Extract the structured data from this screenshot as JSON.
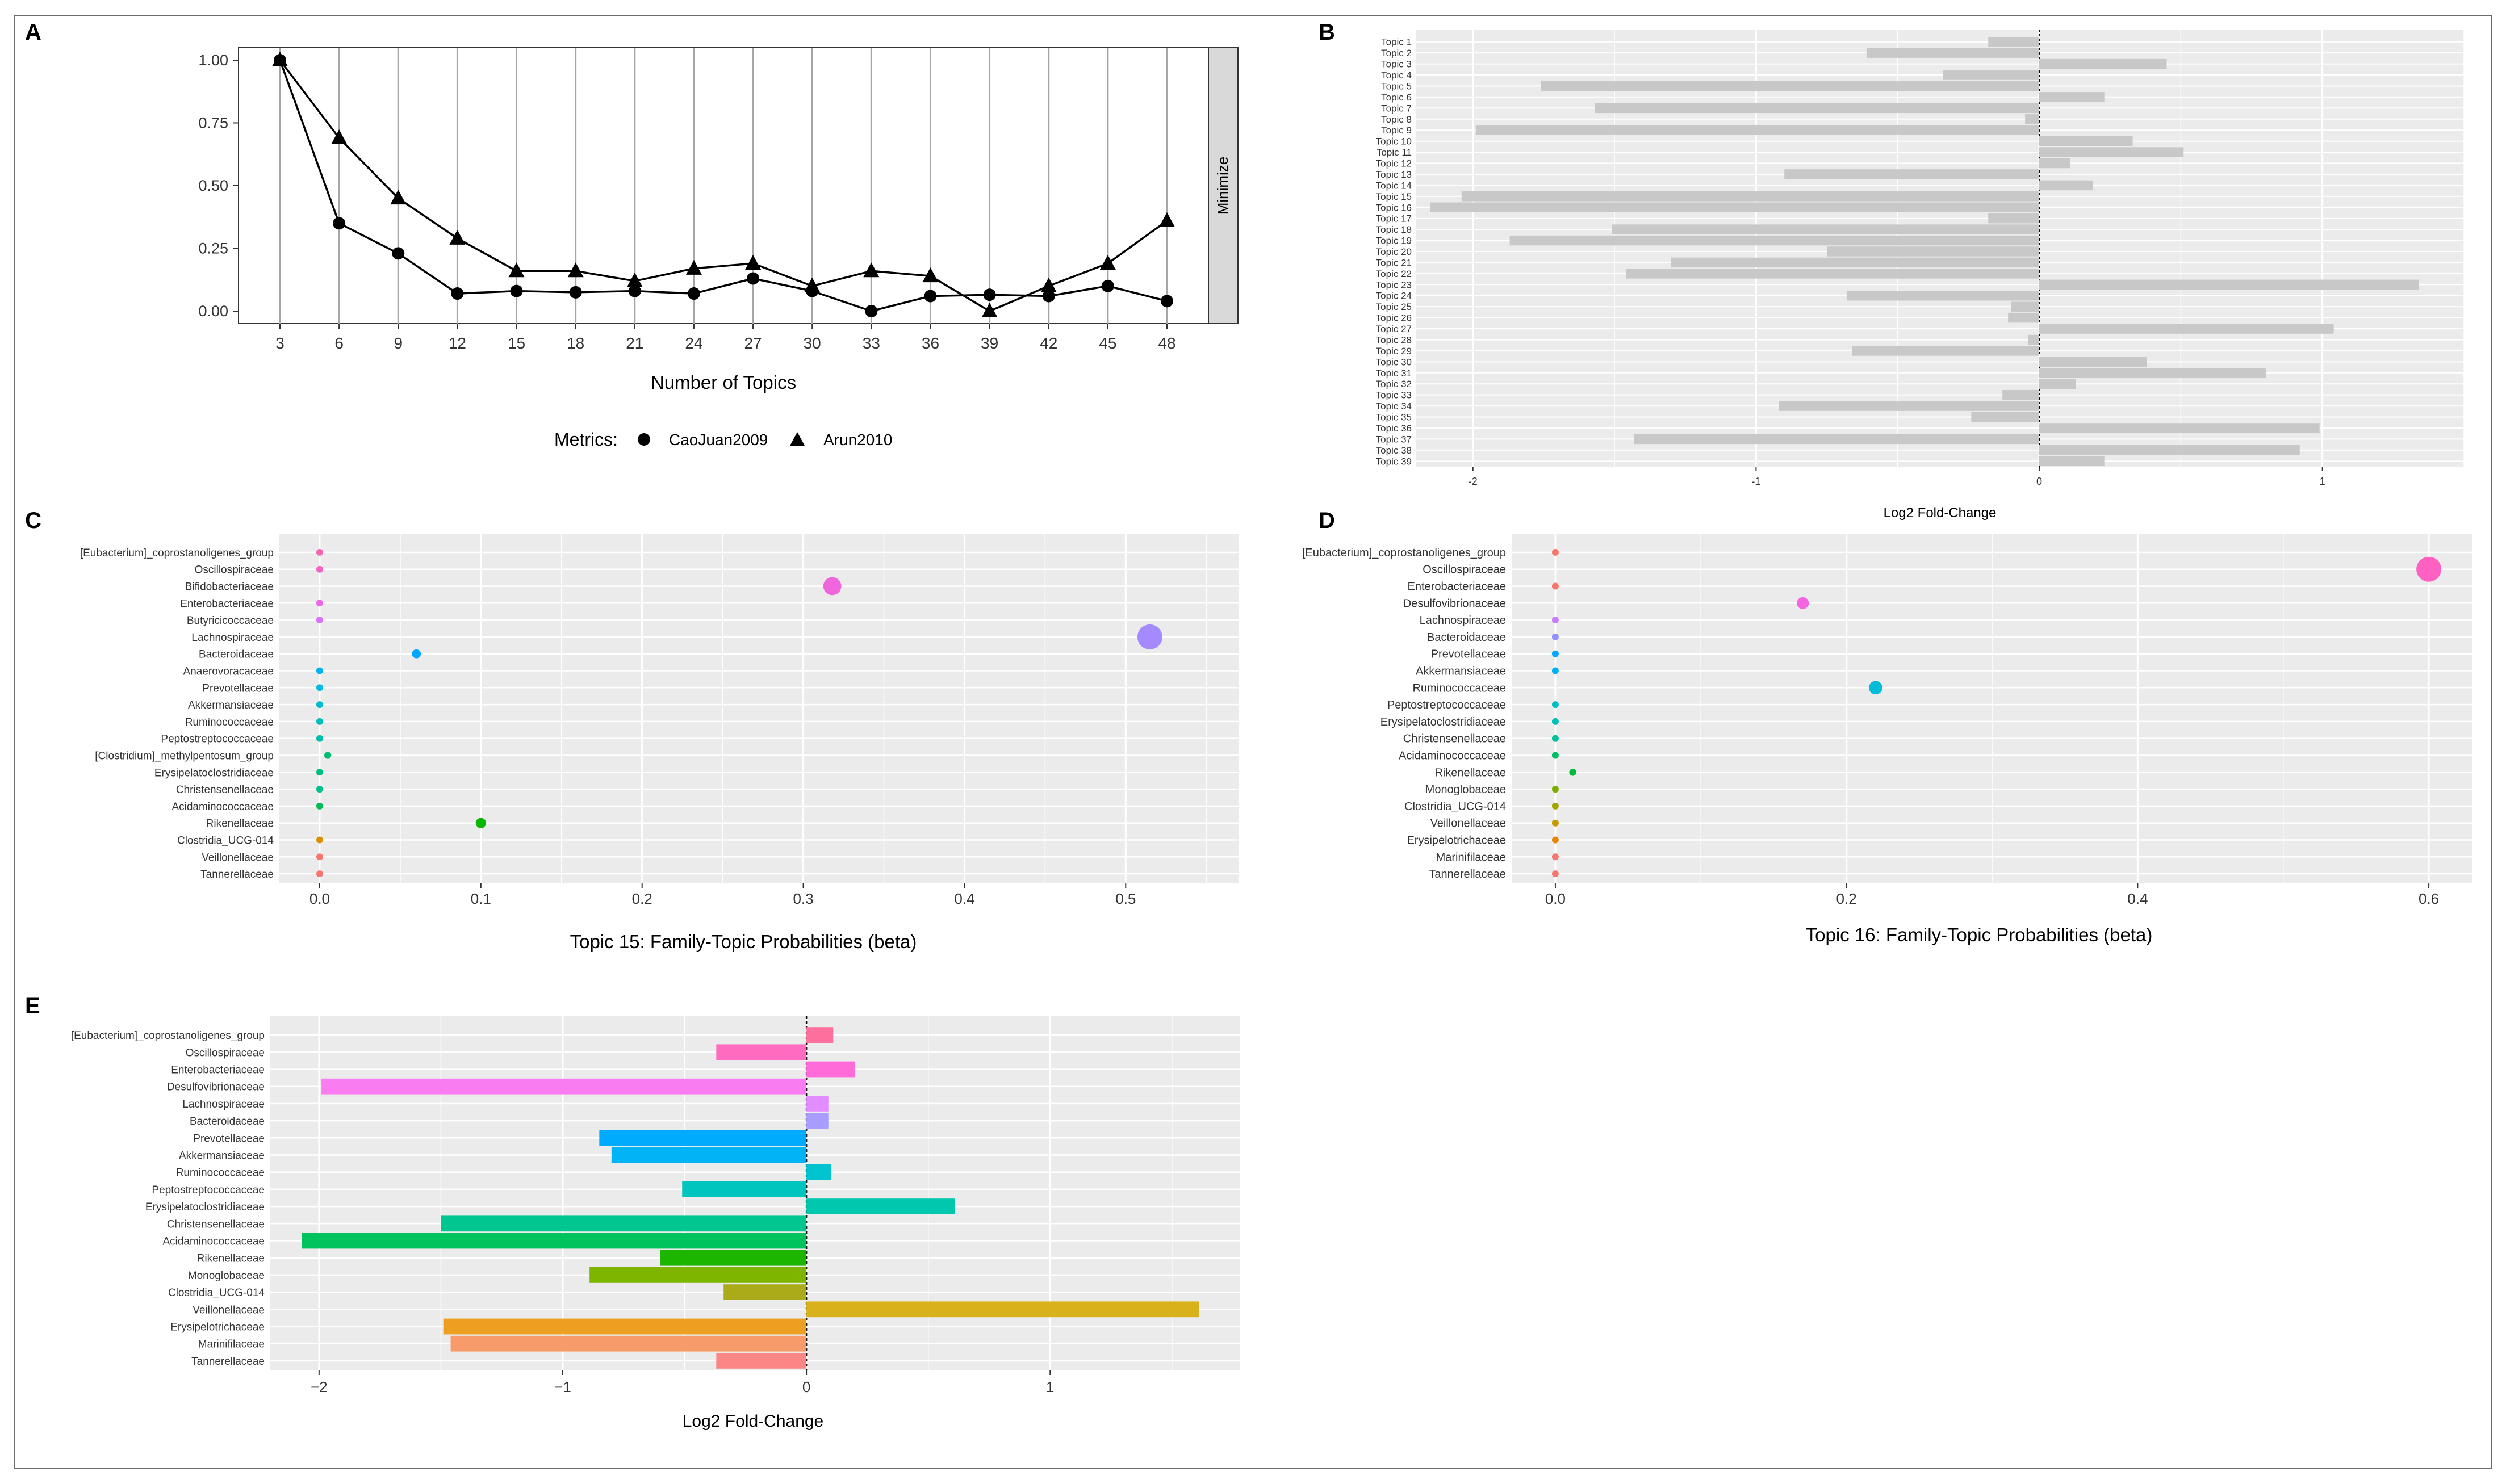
{
  "panels": {
    "A": {
      "letter": "A"
    },
    "B": {
      "letter": "B"
    },
    "C": {
      "letter": "C"
    },
    "D": {
      "letter": "D"
    },
    "E": {
      "letter": "E"
    }
  },
  "chart_data": [
    {
      "id": "A",
      "type": "line",
      "xlabel": "Number of Topics",
      "ylabel": "",
      "x": [
        3,
        6,
        9,
        12,
        15,
        18,
        21,
        24,
        27,
        30,
        33,
        36,
        39,
        42,
        45,
        48
      ],
      "ylim": [
        0,
        1
      ],
      "yticks": [
        "0.00",
        "0.25",
        "0.50",
        "0.75",
        "1.00"
      ],
      "facet_label": "Minimize",
      "legend_title": "Metrics:",
      "legend_position": "bottom",
      "grid": true,
      "series": [
        {
          "name": "CaoJuan2009",
          "marker": "circle",
          "values": [
            1.0,
            0.35,
            0.23,
            0.07,
            0.08,
            0.075,
            0.08,
            0.07,
            0.13,
            0.08,
            0.0,
            0.06,
            0.065,
            0.06,
            0.1,
            0.04
          ]
        },
        {
          "name": "Arun2010",
          "marker": "triangle",
          "values": [
            1.0,
            0.69,
            0.45,
            0.29,
            0.16,
            0.16,
            0.12,
            0.17,
            0.19,
            0.1,
            0.16,
            0.14,
            0.0,
            0.1,
            0.19,
            0.36
          ]
        }
      ]
    },
    {
      "id": "B",
      "type": "bar",
      "orientation": "horizontal",
      "xlabel": "Log2 Fold-Change",
      "ylabel": "",
      "xlim": [
        -2.2,
        1.5
      ],
      "xticks": [
        -2,
        -1,
        0,
        1
      ],
      "color": "#c8c8c8",
      "categories": [
        "Topic 1",
        "Topic 2",
        "Topic 3",
        "Topic 4",
        "Topic 5",
        "Topic 6",
        "Topic 7",
        "Topic 8",
        "Topic 9",
        "Topic 10",
        "Topic 11",
        "Topic 12",
        "Topic 13",
        "Topic 14",
        "Topic 15",
        "Topic 16",
        "Topic 17",
        "Topic 18",
        "Topic 19",
        "Topic 20",
        "Topic 21",
        "Topic 22",
        "Topic 23",
        "Topic 24",
        "Topic 25",
        "Topic 26",
        "Topic 27",
        "Topic 28",
        "Topic 29",
        "Topic 30",
        "Topic 31",
        "Topic 32",
        "Topic 33",
        "Topic 34",
        "Topic 35",
        "Topic 36",
        "Topic 37",
        "Topic 38",
        "Topic 39"
      ],
      "values": [
        -0.18,
        -0.61,
        0.45,
        -0.34,
        -1.76,
        0.23,
        -1.57,
        -0.05,
        -1.99,
        0.33,
        0.51,
        0.11,
        -0.9,
        0.19,
        -2.04,
        -2.15,
        -0.18,
        -1.51,
        -1.87,
        -0.75,
        -1.3,
        -1.46,
        1.34,
        -0.68,
        -0.1,
        -0.11,
        1.04,
        -0.04,
        -0.66,
        0.38,
        0.8,
        0.13,
        -0.13,
        -0.92,
        -0.24,
        0.99,
        -1.43,
        0.92,
        0.23
      ]
    },
    {
      "id": "C",
      "type": "scatter",
      "xlabel": "Topic 15: Family-Topic Probabilities (beta)",
      "ylabel": "",
      "xlim": [
        -0.025,
        0.57
      ],
      "xticks": [
        "0.0",
        "0.1",
        "0.2",
        "0.3",
        "0.4",
        "0.5"
      ],
      "categories": [
        "[Eubacterium]_coprostanoligenes_group",
        "Oscillospiraceae",
        "Bifidobacteriaceae",
        "Enterobacteriaceae",
        "Butyricicoccaceae",
        "Lachnospiraceae",
        "Bacteroidaceae",
        "Anaerovoracaceae",
        "Prevotellaceae",
        "Akkermansiaceae",
        "Ruminococcaceae",
        "Peptostreptococcaceae",
        "[Clostridium]_methylpentosum_group",
        "Erysipelatoclostridiaceae",
        "Christensenellaceae",
        "Acidaminococcaceae",
        "Rikenellaceae",
        "Clostridia_UCG-014",
        "Veillonellaceae",
        "Tannerellaceae"
      ],
      "values": [
        0.0,
        0.0,
        0.318,
        0.0,
        0.0,
        0.515,
        0.06,
        0.0,
        0.0,
        0.0,
        0.0,
        0.0,
        0.005,
        0.0,
        0.0,
        0.0,
        0.1,
        0.0,
        0.0,
        0.0
      ],
      "colors": [
        "#f766ae",
        "#f564c5",
        "#f066dc",
        "#f066ea",
        "#dc71fa",
        "#a58aff",
        "#00a9ff",
        "#00b4ef",
        "#00bae0",
        "#00bdd0",
        "#00c0ba",
        "#00c1a7",
        "#00be70",
        "#00bf7d",
        "#00c08b",
        "#00bc56",
        "#0cb702",
        "#d89000",
        "#f8766d",
        "#f8766d"
      ]
    },
    {
      "id": "D",
      "type": "scatter",
      "xlabel": "Topic 16: Family-Topic Probabilities (beta)",
      "ylabel": "",
      "xlim": [
        -0.03,
        0.63
      ],
      "xticks": [
        "0.0",
        "0.2",
        "0.4",
        "0.6"
      ],
      "categories": [
        "[Eubacterium]_coprostanoligenes_group",
        "Oscillospiraceae",
        "Enterobacteriaceae",
        "Desulfovibrionaceae",
        "Lachnospiraceae",
        "Bacteroidaceae",
        "Prevotellaceae",
        "Akkermansiaceae",
        "Ruminococcaceae",
        "Peptostreptococcaceae",
        "Erysipelatoclostridiaceae",
        "Christensenellaceae",
        "Acidaminococcaceae",
        "Rikenellaceae",
        "Monoglobaceae",
        "Clostridia_UCG-014",
        "Veillonellaceae",
        "Erysipelotrichaceae",
        "Marinifilaceae",
        "Tannerellaceae"
      ],
      "values": [
        0.0,
        0.6,
        0.0,
        0.17,
        0.0,
        0.0,
        0.0,
        0.0,
        0.22,
        0.0,
        0.0,
        0.0,
        0.0,
        0.012,
        0.0,
        0.0,
        0.0,
        0.0,
        0.0,
        0.0
      ],
      "colors": [
        "#f8766d",
        "#ff61c3",
        "#f8766d",
        "#f564e3",
        "#c77cff",
        "#9590ff",
        "#00a9ff",
        "#00b0f6",
        "#00bcd8",
        "#00bfc4",
        "#00c0b8",
        "#00c19a",
        "#00be67",
        "#00ba38",
        "#7cae00",
        "#a3a500",
        "#c49a00",
        "#e58700",
        "#f8766d",
        "#f8766d"
      ]
    },
    {
      "id": "E",
      "type": "bar",
      "orientation": "horizontal",
      "xlabel": "Log2 Fold-Change",
      "ylabel": "",
      "xlim": [
        -2.2,
        1.78
      ],
      "xticks": [
        -2,
        -1,
        0,
        1
      ],
      "categories": [
        "[Eubacterium]_coprostanoligenes_group",
        "Oscillospiraceae",
        "Enterobacteriaceae",
        "Desulfovibrionaceae",
        "Lachnospiraceae",
        "Bacteroidaceae",
        "Prevotellaceae",
        "Akkermansiaceae",
        "Ruminococcaceae",
        "Peptostreptococcaceae",
        "Erysipelatoclostridiaceae",
        "Christensenellaceae",
        "Acidaminococcaceae",
        "Rikenellaceae",
        "Monoglobaceae",
        "Clostridia_UCG-014",
        "Veillonellaceae",
        "Erysipelotrichaceae",
        "Marinifilaceae",
        "Tannerellaceae"
      ],
      "values": [
        0.11,
        -0.37,
        0.2,
        -1.99,
        0.09,
        0.09,
        -0.85,
        -0.8,
        0.1,
        -0.51,
        0.61,
        -1.5,
        -2.07,
        -0.6,
        -0.89,
        -0.34,
        1.61,
        -1.49,
        -1.46,
        -0.37
      ],
      "colors": [
        "#fd6f9d",
        "#ff6bbf",
        "#ff6bd9",
        "#f97cf0",
        "#e28cff",
        "#a89dff",
        "#00abfd",
        "#00b4f6",
        "#00c3d0",
        "#00c5bf",
        "#00c7ad",
        "#00c690",
        "#00c35d",
        "#1cb600",
        "#7db500",
        "#abab1a",
        "#d8b11b",
        "#ec9f21",
        "#f89b6a",
        "#fb8686"
      ]
    }
  ]
}
